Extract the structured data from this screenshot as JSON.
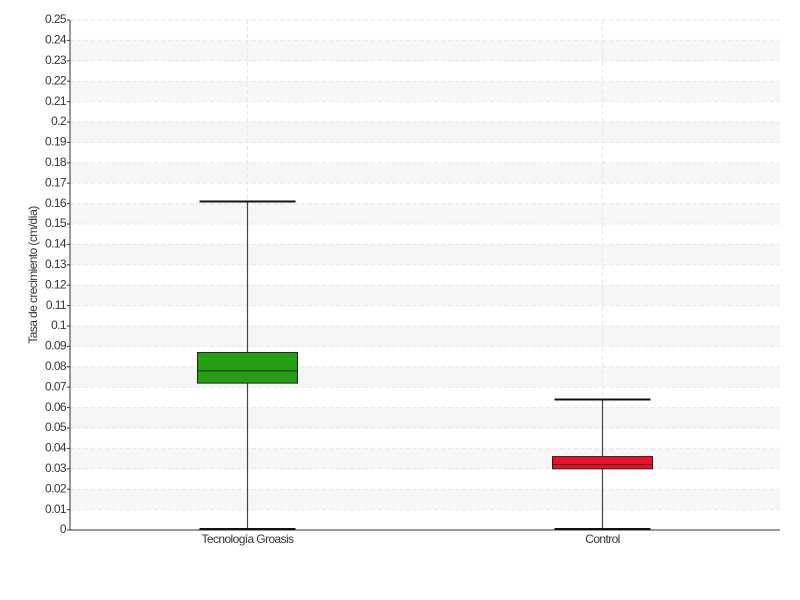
{
  "chart_data": {
    "type": "box",
    "y_label": "Tasa de crecimiento (cm/día)",
    "categories": [
      "Tecnología Groasis",
      "Control"
    ],
    "boxes": [
      {
        "min": 0,
        "q1": 0.072,
        "median": 0.078,
        "q3": 0.087,
        "max": 0.161,
        "color": "#22a012"
      },
      {
        "min": 0,
        "q1": 0.03,
        "median": 0.032,
        "q3": 0.036,
        "max": 0.064,
        "color": "#f0102a"
      }
    ],
    "ylim": [
      0,
      0.25
    ],
    "yticks": [
      0,
      0.01,
      0.02,
      0.03,
      0.04,
      0.05,
      0.06,
      0.07,
      0.08,
      0.09,
      0.1,
      0.11,
      0.12,
      0.13,
      0.14,
      0.15,
      0.16,
      0.17,
      0.18,
      0.19,
      0.2,
      0.21,
      0.22,
      0.23,
      0.24,
      0.25
    ],
    "grid": true
  }
}
